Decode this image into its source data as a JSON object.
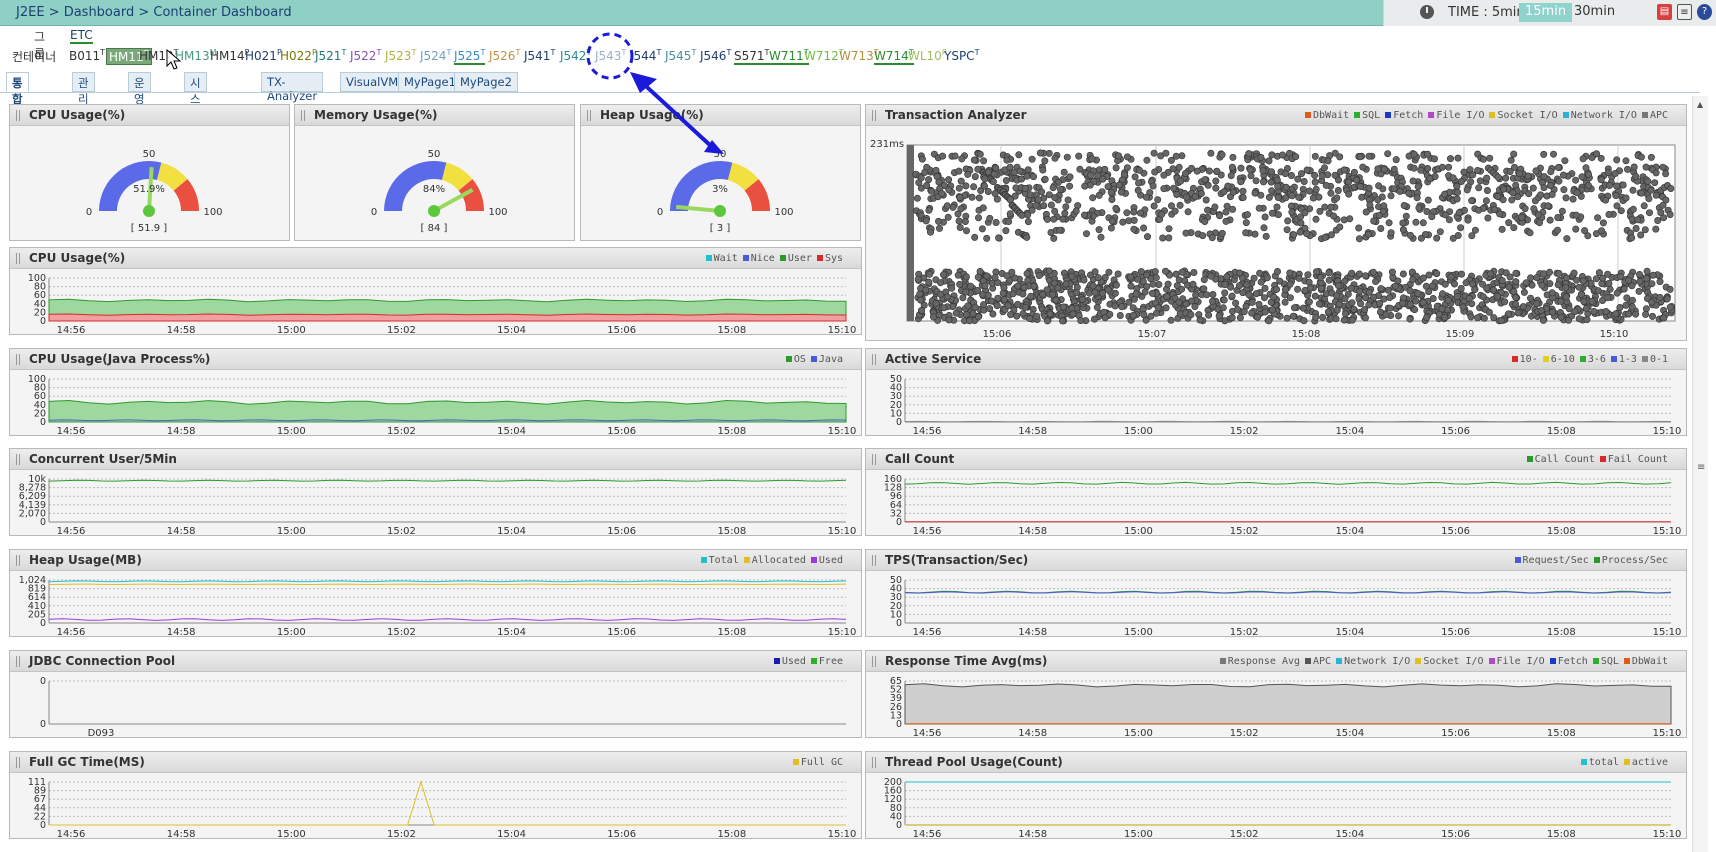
{
  "header": {
    "breadcrumb": "J2EE > Dashboard > Container Dashboard",
    "time_label": "TIME : 5min",
    "time_options": [
      "15min",
      "30min"
    ],
    "icons": [
      "pdf-icon",
      "document-icon",
      "help-icon"
    ]
  },
  "group": {
    "label": "그룹",
    "value": "ETC"
  },
  "containers": {
    "label": "컨테이너",
    "items": [
      {
        "name": "B011",
        "sup": "T",
        "color": "#333"
      },
      {
        "name": "HM11",
        "sup": "T",
        "color": "#333",
        "selected": true
      },
      {
        "name": "HM12",
        "sup": "T",
        "color": "#333"
      },
      {
        "name": "HM13",
        "sup": "M",
        "color": "#4a9a7c"
      },
      {
        "name": "HM14",
        "sup": "P",
        "color": "#333"
      },
      {
        "name": "H021",
        "sup": "P",
        "color": "#1f3f70"
      },
      {
        "name": "H022",
        "sup": "P",
        "color": "#7a7a00"
      },
      {
        "name": "J521",
        "sup": "T",
        "color": "#1f7a7a"
      },
      {
        "name": "J522",
        "sup": "T",
        "color": "#8a4fb0"
      },
      {
        "name": "J523",
        "sup": "T",
        "color": "#b0b040"
      },
      {
        "name": "J524",
        "sup": "T",
        "color": "#6fa3c0"
      },
      {
        "name": "J525",
        "sup": "T",
        "color": "#3a8cc0",
        "underline": true
      },
      {
        "name": "J526",
        "sup": "T",
        "color": "#c09040"
      },
      {
        "name": "J541",
        "sup": "T",
        "color": "#1f3f70"
      },
      {
        "name": "J542",
        "sup": "T",
        "color": "#2a8c8c"
      },
      {
        "name": "J543",
        "sup": "T",
        "color": "#9ab0c8"
      },
      {
        "name": "J544",
        "sup": "T",
        "color": "#1f3f70"
      },
      {
        "name": "J545",
        "sup": "T",
        "color": "#4a8ca0"
      },
      {
        "name": "J546",
        "sup": "T",
        "color": "#1f3f70"
      },
      {
        "name": "S571",
        "sup": "T",
        "color": "#333",
        "underline": true
      },
      {
        "name": "W711",
        "sup": "T",
        "color": "#2a8c2a",
        "underline": true
      },
      {
        "name": "W712",
        "sup": "T",
        "color": "#6fc040"
      },
      {
        "name": "W713",
        "sup": "T",
        "color": "#b09040"
      },
      {
        "name": "W714",
        "sup": "T",
        "color": "#2a8c2a",
        "underline": true
      },
      {
        "name": "WL10",
        "sup": "P",
        "color": "#a0c060"
      },
      {
        "name": "YSPC",
        "sup": "T",
        "color": "#1f3f70"
      }
    ]
  },
  "tabs": [
    "통합관제뷰",
    "관리자뷰",
    "운영자뷰",
    "시스템담당자뷰",
    "TX-Analyzer",
    "VisualVM",
    "MyPage1",
    "MyPage2"
  ],
  "gauges": [
    {
      "title": "CPU Usage(%)",
      "value": 51.9,
      "center_label": "51.9%",
      "bottom_label": "[ 51.9 ]",
      "min": "0",
      "mid": "50",
      "max": "100"
    },
    {
      "title": "Memory Usage(%)",
      "value": 84,
      "center_label": "84%",
      "bottom_label": "[ 84 ]",
      "min": "0",
      "mid": "50",
      "max": "100"
    },
    {
      "title": "Heap Usage(%)",
      "value": 3,
      "center_label": "3%",
      "bottom_label": "[ 3 ]",
      "min": "0",
      "mid": "50",
      "max": "100"
    }
  ],
  "time_ticks": [
    "14:56",
    "14:58",
    "15:00",
    "15:02",
    "15:04",
    "15:06",
    "15:08",
    "15:10"
  ],
  "tx_analyzer": {
    "title": "Transaction Analyzer",
    "ymax": "231ms",
    "x_ticks": [
      "15:06",
      "15:07",
      "15:08",
      "15:09",
      "15:10"
    ],
    "legend": [
      "DbWait",
      "SQL",
      "Fetch",
      "File I/O",
      "Socket I/O",
      "Network I/O",
      "APC"
    ],
    "legend_colors": [
      "#e05a1a",
      "#2ab02a",
      "#1a3ac8",
      "#b04ac8",
      "#e0c020",
      "#30b0d8",
      "#777777"
    ]
  },
  "charts": {
    "cpu": {
      "title": "CPU Usage(%)",
      "y_ticks": [
        "100",
        "80",
        "60",
        "40",
        "20",
        "0"
      ],
      "legend": [
        "Wait",
        "Nice",
        "User",
        "Sys"
      ],
      "legend_colors": [
        "#20c0d0",
        "#4a5ad8",
        "#2a9a2a",
        "#d82a2a"
      ]
    },
    "cpu_java": {
      "title": "CPU Usage(Java Process%)",
      "y_ticks": [
        "100",
        "80",
        "60",
        "40",
        "20",
        "0"
      ],
      "legend": [
        "OS",
        "Java"
      ],
      "legend_colors": [
        "#2a9a2a",
        "#4a5ad8"
      ]
    },
    "concurrent": {
      "title": "Concurrent User/5Min",
      "y_ticks": [
        "10k",
        "8,278",
        "6,209",
        "4,139",
        "2,070",
        "0"
      ]
    },
    "heap_mb": {
      "title": "Heap Usage(MB)",
      "y_ticks": [
        "1,024",
        "819",
        "614",
        "410",
        "205",
        "0"
      ],
      "legend": [
        "Total",
        "Allocated",
        "Used"
      ],
      "legend_colors": [
        "#20c0d0",
        "#e0c020",
        "#9a3ad8"
      ]
    },
    "jdbc": {
      "title": "JDBC Connection Pool",
      "y_ticks": [
        "0",
        "0"
      ],
      "x_label": "D093",
      "legend": [
        "Used",
        "Free"
      ],
      "legend_colors": [
        "#1a1ab0",
        "#2ab02a"
      ]
    },
    "full_gc": {
      "title": "Full GC Time(MS)",
      "y_ticks": [
        "111",
        "89",
        "67",
        "44",
        "22",
        "0"
      ],
      "legend": [
        "Full GC"
      ],
      "legend_colors": [
        "#e0c020"
      ]
    },
    "active_service": {
      "title": "Active Service",
      "y_ticks": [
        "50",
        "40",
        "30",
        "20",
        "10",
        "0"
      ],
      "legend": [
        "10-",
        "6-10",
        "3-6",
        "1-3",
        "0-1"
      ],
      "legend_colors": [
        "#d82a2a",
        "#e0d020",
        "#2ab02a",
        "#4a5ad8",
        "#888888"
      ]
    },
    "call_count": {
      "title": "Call Count",
      "y_ticks": [
        "160",
        "128",
        "96",
        "64",
        "32",
        "0"
      ],
      "legend": [
        "Call Count",
        "Fail Count"
      ],
      "legend_colors": [
        "#2a9a2a",
        "#d82a2a"
      ]
    },
    "tps": {
      "title": "TPS(Transaction/Sec)",
      "y_ticks": [
        "50",
        "40",
        "30",
        "20",
        "10",
        "0"
      ],
      "legend": [
        "Request/Sec",
        "Process/Sec"
      ],
      "legend_colors": [
        "#4a5ad8",
        "#2a9a2a"
      ]
    },
    "resp_time": {
      "title": "Response Time Avg(ms)",
      "y_ticks": [
        "65",
        "52",
        "39",
        "26",
        "13",
        "0"
      ],
      "legend": [
        "Response Avg",
        "APC",
        "Network I/O",
        "Socket I/O",
        "File I/O",
        "Fetch",
        "SQL",
        "DbWait"
      ],
      "legend_colors": [
        "#777777",
        "#555555",
        "#30b0d8",
        "#e0c020",
        "#b04ac8",
        "#1a3ac8",
        "#2ab02a",
        "#e05a1a"
      ]
    },
    "thread_pool": {
      "title": "Thread Pool Usage(Count)",
      "y_ticks": [
        "200",
        "160",
        "120",
        "80",
        "40",
        "0"
      ],
      "legend": [
        "total",
        "active"
      ],
      "legend_colors": [
        "#20c0d0",
        "#e0c020"
      ]
    }
  }
}
